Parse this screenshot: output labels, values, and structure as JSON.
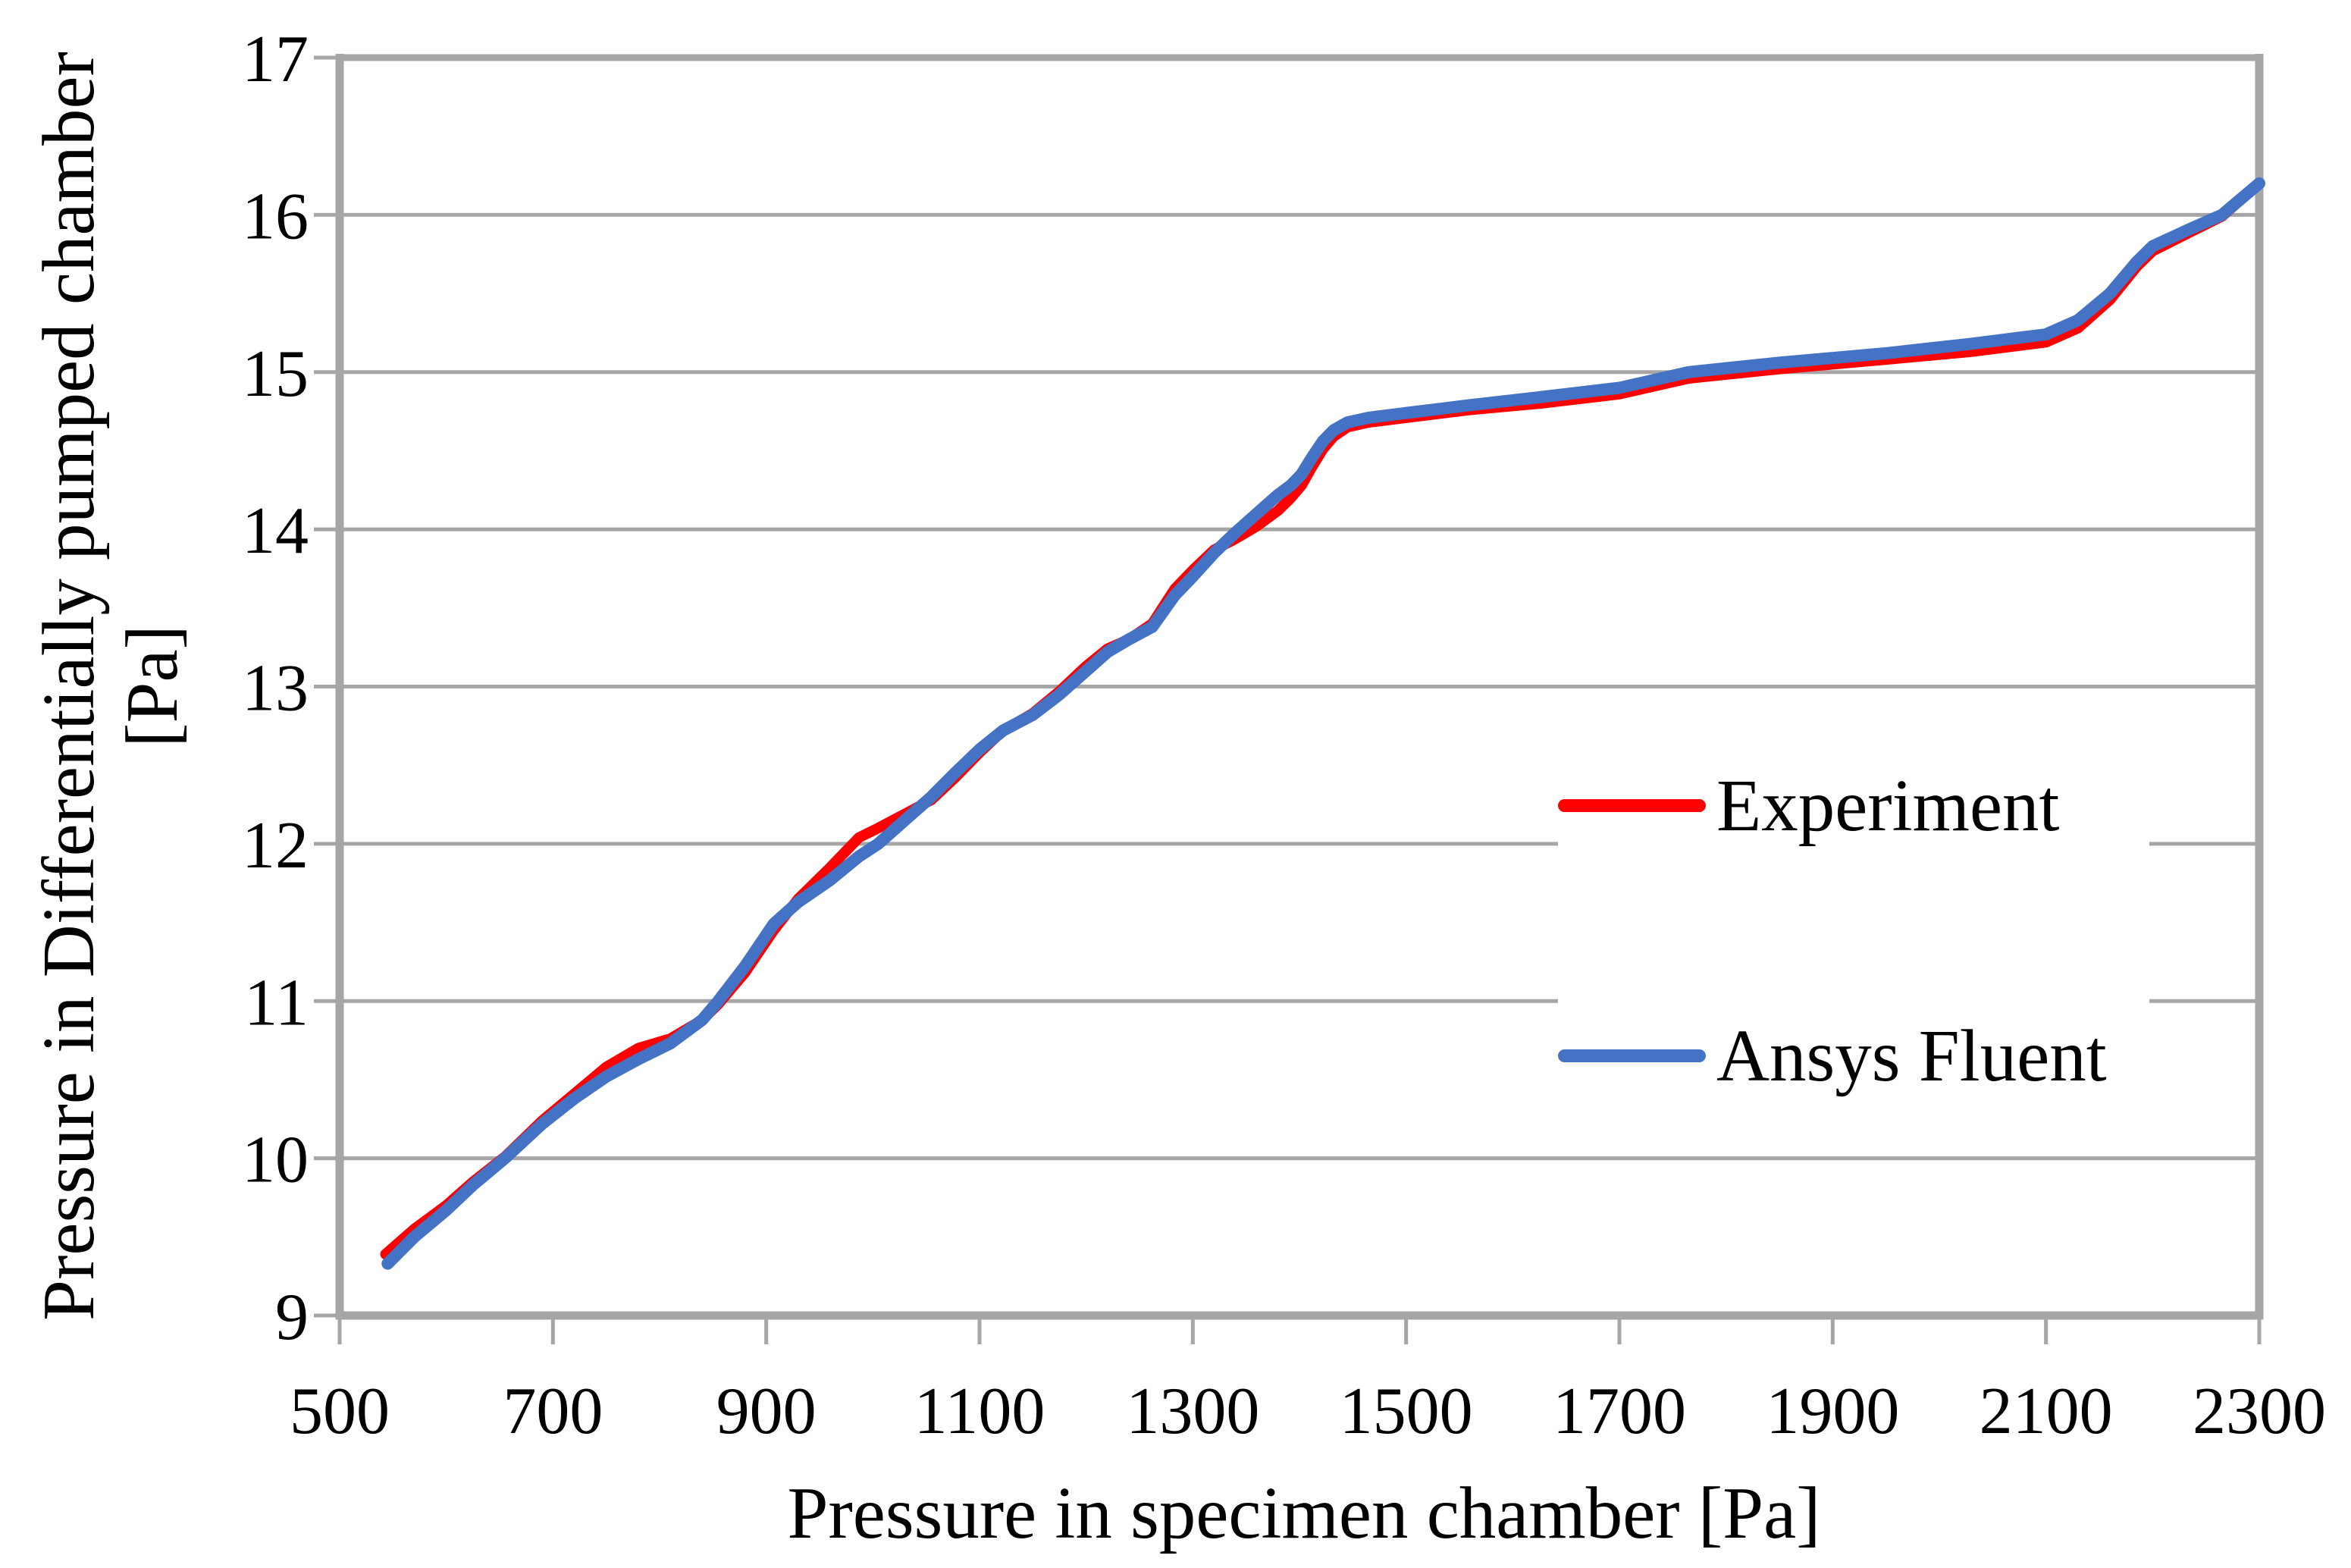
{
  "chart_data": {
    "type": "line",
    "title": "",
    "xlabel": "Pressure in specimen chamber [Pa]",
    "ylabel": "Pressure in Differentially pumped chamber [Pa]",
    "ylabel_lines": [
      "Pressure in Differentially pumped chamber",
      "[Pa]"
    ],
    "xlim": [
      500,
      2300
    ],
    "ylim": [
      9,
      17
    ],
    "x_ticks": [
      500,
      700,
      900,
      1100,
      1300,
      1500,
      1700,
      1900,
      2100,
      2300
    ],
    "x_tick_labels": [
      "500",
      "700",
      "900",
      "1100",
      "1300",
      "1500",
      "1700",
      "1900",
      "2100",
      "2300"
    ],
    "y_ticks": [
      9,
      10,
      11,
      12,
      13,
      14,
      15,
      16,
      17
    ],
    "y_tick_labels": [
      "9",
      "10",
      "11",
      "12",
      "13",
      "14",
      "15",
      "16",
      "17"
    ],
    "grid": "horizontal",
    "legend_position": "middle-right",
    "series": [
      {
        "name": "Experiment",
        "color": "#FF0000",
        "points": [
          [
            543,
            9.39
          ],
          [
            570,
            9.55
          ],
          [
            600,
            9.7
          ],
          [
            625,
            9.85
          ],
          [
            655,
            10.01
          ],
          [
            690,
            10.24
          ],
          [
            720,
            10.41
          ],
          [
            750,
            10.58
          ],
          [
            780,
            10.7
          ],
          [
            810,
            10.76
          ],
          [
            840,
            10.88
          ],
          [
            855,
            10.98
          ],
          [
            880,
            11.18
          ],
          [
            907,
            11.45
          ],
          [
            930,
            11.65
          ],
          [
            960,
            11.85
          ],
          [
            987,
            12.04
          ],
          [
            1005,
            12.1
          ],
          [
            1030,
            12.19
          ],
          [
            1055,
            12.28
          ],
          [
            1077,
            12.42
          ],
          [
            1100,
            12.58
          ],
          [
            1122,
            12.72
          ],
          [
            1150,
            12.83
          ],
          [
            1175,
            12.97
          ],
          [
            1200,
            13.13
          ],
          [
            1220,
            13.24
          ],
          [
            1240,
            13.3
          ],
          [
            1262,
            13.4
          ],
          [
            1283,
            13.62
          ],
          [
            1300,
            13.74
          ],
          [
            1320,
            13.87
          ],
          [
            1340,
            13.94
          ],
          [
            1360,
            14.02
          ],
          [
            1380,
            14.12
          ],
          [
            1392,
            14.2
          ],
          [
            1402,
            14.28
          ],
          [
            1412,
            14.4
          ],
          [
            1422,
            14.51
          ],
          [
            1432,
            14.59
          ],
          [
            1445,
            14.65
          ],
          [
            1465,
            14.68
          ],
          [
            1500,
            14.71
          ],
          [
            1560,
            14.76
          ],
          [
            1625,
            14.8
          ],
          [
            1700,
            14.86
          ],
          [
            1765,
            14.96
          ],
          [
            1850,
            15.02
          ],
          [
            1950,
            15.08
          ],
          [
            2030,
            15.13
          ],
          [
            2100,
            15.19
          ],
          [
            2130,
            15.28
          ],
          [
            2160,
            15.46
          ],
          [
            2185,
            15.67
          ],
          [
            2200,
            15.77
          ],
          [
            2235,
            15.89
          ],
          [
            2265,
            15.99
          ],
          [
            2300,
            16.2
          ]
        ]
      },
      {
        "name": "Ansys Fluent",
        "color": "#4472C4",
        "points": [
          [
            545,
            9.33
          ],
          [
            570,
            9.5
          ],
          [
            600,
            9.67
          ],
          [
            625,
            9.83
          ],
          [
            655,
            10.0
          ],
          [
            690,
            10.22
          ],
          [
            720,
            10.38
          ],
          [
            750,
            10.52
          ],
          [
            780,
            10.63
          ],
          [
            810,
            10.73
          ],
          [
            840,
            10.88
          ],
          [
            855,
            11.0
          ],
          [
            880,
            11.22
          ],
          [
            907,
            11.49
          ],
          [
            930,
            11.63
          ],
          [
            960,
            11.77
          ],
          [
            987,
            11.92
          ],
          [
            1005,
            12.0
          ],
          [
            1030,
            12.15
          ],
          [
            1055,
            12.3
          ],
          [
            1077,
            12.45
          ],
          [
            1100,
            12.6
          ],
          [
            1122,
            12.72
          ],
          [
            1150,
            12.82
          ],
          [
            1175,
            12.95
          ],
          [
            1200,
            13.1
          ],
          [
            1220,
            13.22
          ],
          [
            1240,
            13.3
          ],
          [
            1262,
            13.38
          ],
          [
            1283,
            13.58
          ],
          [
            1300,
            13.7
          ],
          [
            1320,
            13.85
          ],
          [
            1340,
            13.98
          ],
          [
            1360,
            14.1
          ],
          [
            1380,
            14.22
          ],
          [
            1392,
            14.28
          ],
          [
            1402,
            14.35
          ],
          [
            1412,
            14.46
          ],
          [
            1422,
            14.56
          ],
          [
            1432,
            14.63
          ],
          [
            1445,
            14.68
          ],
          [
            1465,
            14.71
          ],
          [
            1500,
            14.74
          ],
          [
            1560,
            14.79
          ],
          [
            1625,
            14.84
          ],
          [
            1700,
            14.9
          ],
          [
            1765,
            15.0
          ],
          [
            1850,
            15.06
          ],
          [
            1950,
            15.12
          ],
          [
            2030,
            15.18
          ],
          [
            2100,
            15.24
          ],
          [
            2130,
            15.33
          ],
          [
            2160,
            15.5
          ],
          [
            2185,
            15.7
          ],
          [
            2200,
            15.8
          ],
          [
            2235,
            15.91
          ],
          [
            2265,
            16.0
          ],
          [
            2300,
            16.2
          ]
        ]
      }
    ]
  },
  "legend": {
    "items": [
      {
        "label": "Experiment",
        "color": "#FF0000"
      },
      {
        "label": "Ansys Fluent",
        "color": "#4472C4"
      }
    ]
  },
  "colors": {
    "axis": "#A6A6A6",
    "grid": "#A6A6A6",
    "background": "#FFFFFF",
    "text": "#000000",
    "experiment": "#FF0000",
    "ansys_fluent": "#4472C4"
  }
}
